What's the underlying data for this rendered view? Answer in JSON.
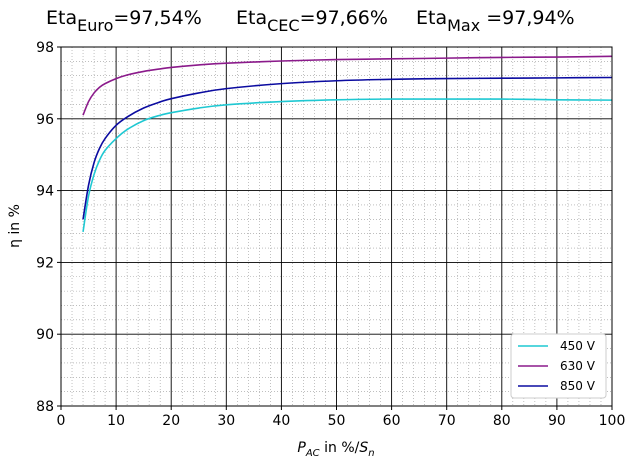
{
  "title": {
    "euro_prefix": "Eta",
    "euro_sub": "Euro",
    "euro_value": "=97,54%",
    "cec_prefix": "Eta",
    "cec_sub": "CEC",
    "cec_value": "=97,66%",
    "max_prefix": "Eta",
    "max_sub": "Max",
    "max_value": " =97,94%"
  },
  "axes": {
    "ylabel": "η in %",
    "xlabel_p": "P",
    "xlabel_ac": "AC",
    "xlabel_mid": " in %/",
    "xlabel_s": "S",
    "xlabel_n": "n"
  },
  "chart_data": {
    "type": "line",
    "xlim": [
      0,
      100
    ],
    "ylim": [
      88,
      98
    ],
    "xticks": [
      0,
      10,
      20,
      30,
      40,
      50,
      60,
      70,
      80,
      90,
      100
    ],
    "yticks": [
      88,
      90,
      92,
      94,
      96,
      98
    ],
    "grid": true,
    "legend_position": "bottom-right",
    "series": [
      {
        "name": "450 V",
        "color": "#1fc8d2",
        "x": [
          4,
          5,
          6,
          7,
          8,
          10,
          12,
          15,
          18,
          20,
          25,
          30,
          40,
          50,
          60,
          70,
          80,
          90,
          100
        ],
        "values": [
          92.85,
          93.85,
          94.45,
          94.85,
          95.12,
          95.45,
          95.7,
          95.95,
          96.1,
          96.17,
          96.3,
          96.39,
          96.48,
          96.53,
          96.55,
          96.55,
          96.55,
          96.53,
          96.52
        ]
      },
      {
        "name": "630 V",
        "color": "#8b1a8b",
        "x": [
          4,
          5,
          6,
          7,
          8,
          10,
          12,
          15,
          18,
          20,
          25,
          30,
          40,
          50,
          60,
          70,
          80,
          90,
          100
        ],
        "values": [
          96.1,
          96.48,
          96.72,
          96.88,
          96.98,
          97.12,
          97.22,
          97.32,
          97.39,
          97.43,
          97.5,
          97.55,
          97.61,
          97.65,
          97.67,
          97.69,
          97.71,
          97.72,
          97.74
        ]
      },
      {
        "name": "850 V",
        "color": "#0b0ba0",
        "x": [
          4,
          5,
          6,
          7,
          8,
          10,
          12,
          15,
          18,
          20,
          25,
          30,
          40,
          50,
          60,
          70,
          80,
          90,
          100
        ],
        "values": [
          93.2,
          94.15,
          94.78,
          95.18,
          95.45,
          95.82,
          96.05,
          96.3,
          96.47,
          96.56,
          96.72,
          96.84,
          96.98,
          97.06,
          97.1,
          97.12,
          97.13,
          97.14,
          97.15
        ]
      }
    ]
  }
}
